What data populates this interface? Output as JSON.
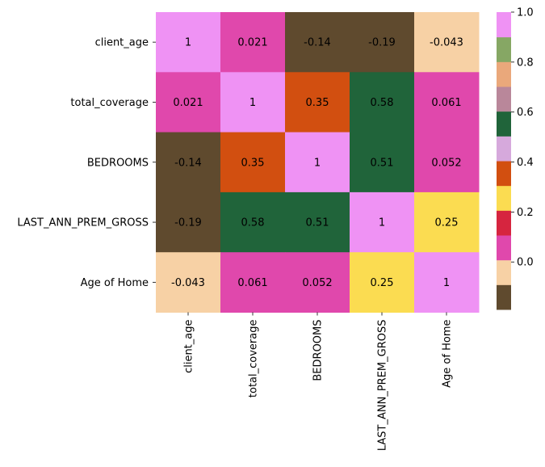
{
  "chart_data": {
    "type": "heatmap",
    "title": "",
    "xlabel": "",
    "ylabel": "",
    "row_labels": [
      "client_age",
      "total_coverage",
      "BEDROOMS",
      "LAST_ANN_PREM_GROSS",
      "Age of Home"
    ],
    "col_labels": [
      "client_age",
      "total_coverage",
      "BEDROOMS",
      "LAST_ANN_PREM_GROSS",
      "Age of Home"
    ],
    "values": [
      [
        1,
        0.021,
        -0.14,
        -0.19,
        -0.043
      ],
      [
        0.021,
        1,
        0.35,
        0.58,
        0.061
      ],
      [
        -0.14,
        0.35,
        1,
        0.51,
        0.052
      ],
      [
        -0.19,
        0.58,
        0.51,
        1,
        0.25
      ],
      [
        -0.043,
        0.061,
        0.052,
        0.25,
        1
      ]
    ],
    "annotations": [
      [
        "1",
        "0.021",
        "-0.14",
        "-0.19",
        "-0.043"
      ],
      [
        "0.021",
        "1",
        "0.35",
        "0.58",
        "0.061"
      ],
      [
        "-0.14",
        "0.35",
        "1",
        "0.51",
        "0.052"
      ],
      [
        "-0.19",
        "0.58",
        "0.51",
        "1",
        "0.25"
      ],
      [
        "-0.043",
        "0.061",
        "0.052",
        "0.25",
        "1"
      ]
    ],
    "colorbar": {
      "vmin": -0.19,
      "vmax": 1.0,
      "ticks": [
        1.0,
        0.8,
        0.6,
        0.4,
        0.2,
        0.0
      ],
      "tick_labels": [
        "1.0",
        "0.8",
        "0.6",
        "0.4",
        "0.2",
        "0.0"
      ],
      "colors_bottom_to_top": [
        "#5f4a2e",
        "#f7d1a5",
        "#e048ac",
        "#d6253f",
        "#fbdc51",
        "#d24f10",
        "#d6a9dc",
        "#20643a",
        "#b9879a",
        "#eaa87b",
        "#86a764",
        "#ef92f4"
      ]
    }
  }
}
